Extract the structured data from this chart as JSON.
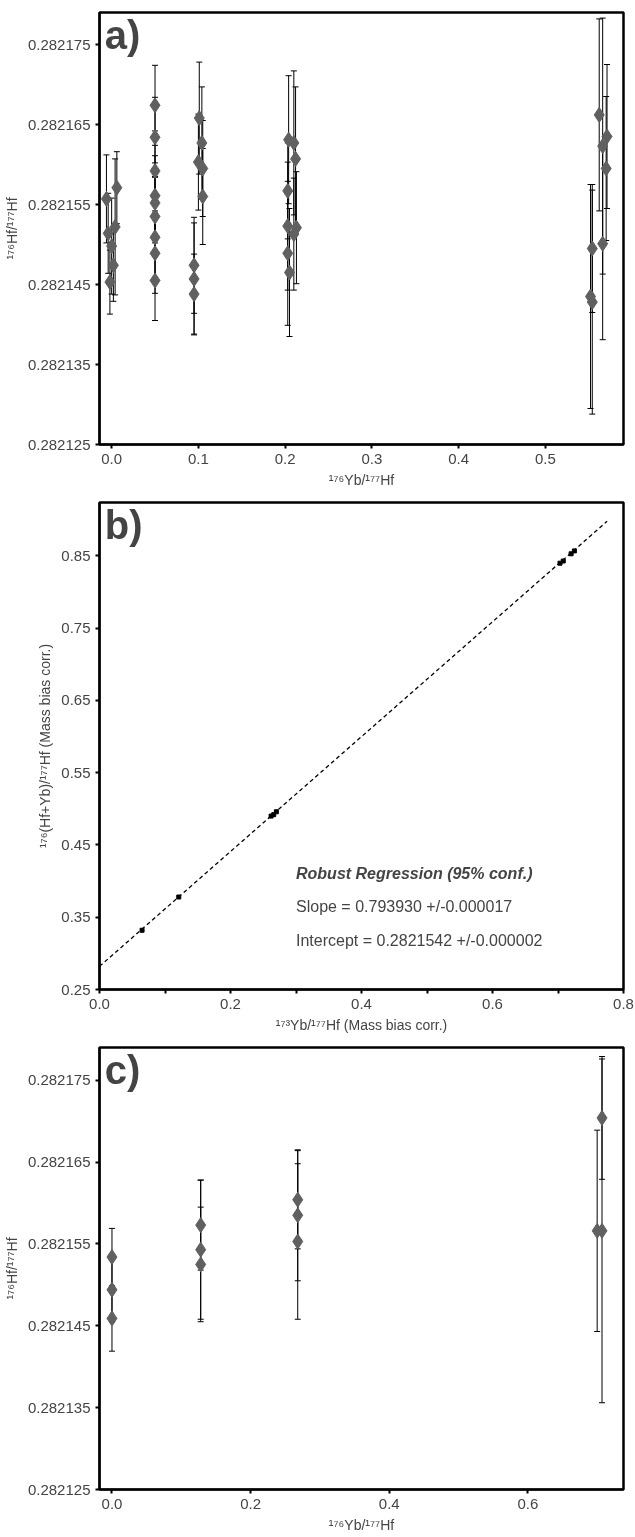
{
  "chart_data": [
    {
      "type": "scatter",
      "title": "a)",
      "xlabel": "¹⁷⁶Yb/¹⁷⁷Hf",
      "ylabel": "¹⁷⁶Hf/¹⁷⁷Hf",
      "xlim": [
        -0.014,
        0.59
      ],
      "ylim": [
        0.282125,
        0.282179
      ],
      "xticks": [
        {
          "value": 0,
          "label": "0.0"
        },
        0.1,
        0.2,
        0.3,
        0.4,
        0.5
      ],
      "yticks": [
        0.282125,
        0.282135,
        0.282145,
        0.282155,
        0.282165,
        0.282175
      ],
      "grid": false,
      "series": [
        {
          "marker": "diamond",
          "color": "#606060",
          "x": [
            0.006,
            -0.006,
            0.004,
            -0.004,
            0,
            0.002,
            -0.002,
            0.05,
            0.05,
            0.05,
            0.05,
            0.05,
            0.05,
            0.05,
            0.05,
            0.05,
            0.101,
            0.104,
            0.1,
            0.105,
            0.105,
            0.095,
            0.095,
            0.095,
            0.204,
            0.21,
            0.212,
            0.203,
            0.203,
            0.213,
            0.21,
            0.203,
            0.205,
            0.562,
            0.571,
            0.566,
            0.57,
            0.566,
            0.554,
            0.552,
            0.554
          ],
          "values": [
            0.2821571,
            0.2821557,
            0.2821522,
            0.2821514,
            0.2821498,
            0.2821474,
            0.2821453,
            0.2821674,
            0.2821634,
            0.2821592,
            0.2821561,
            0.2821552,
            0.2821535,
            0.2821509,
            0.2821489,
            0.2821455,
            0.2821658,
            0.2821627,
            0.2821603,
            0.2821595,
            0.282156,
            0.2821474,
            0.2821457,
            0.2821438,
            0.2821631,
            0.2821627,
            0.2821607,
            0.2821567,
            0.2821523,
            0.2821521,
            0.2821513,
            0.2821489,
            0.2821465,
            0.2821662,
            0.2821635,
            0.2821623,
            0.2821595,
            0.2821501,
            0.2821495,
            0.2821435,
            0.2821428
          ],
          "errors": [
            4.5e-06,
            5.5e-06,
            8.5e-06,
            5e-06,
            6e-06,
            4.5e-06,
            4e-06,
            5e-06,
            5e-06,
            5e-06,
            5e-06,
            5e-06,
            5e-06,
            5e-06,
            5e-06,
            5e-06,
            7e-06,
            7e-06,
            6e-06,
            6e-06,
            6e-06,
            6e-06,
            7e-06,
            5e-06,
            8e-06,
            9e-06,
            9e-06,
            6e-06,
            8e-06,
            7e-06,
            7e-06,
            9e-06,
            8e-06,
            1.2e-05,
            9e-06,
            1.6e-05,
            9e-06,
            1.2e-05,
            8e-06,
            1.4e-05,
            1.4e-05
          ]
        }
      ]
    },
    {
      "type": "scatter",
      "title": "b)",
      "xlabel": "¹⁷³Yb/¹⁷⁷Hf (Mass bias corr.)",
      "ylabel": "¹⁷⁶(Hf+Yb)/¹⁷⁷Hf (Mass bias corr.)",
      "xlim": [
        0,
        0.8
      ],
      "ylim": [
        0.25,
        0.924
      ],
      "xticks": [
        {
          "value": 0,
          "label": "0.0"
        },
        {
          "value": 0.1,
          "label": null
        },
        0.2,
        {
          "value": 0.3,
          "label": null
        },
        0.4,
        {
          "value": 0.5,
          "label": null
        },
        0.6,
        {
          "value": 0.7,
          "label": null
        },
        0.8
      ],
      "yticks": [
        0.25,
        0.35,
        0.45,
        0.55,
        0.65,
        0.75,
        0.85
      ],
      "grid": false,
      "annotations": [
        "Robust Regression (95% conf.)",
        "Slope = 0.793930 +/-0.000017",
        "Intercept = 0.2821542 +/-0.000002"
      ],
      "series": [
        {
          "type": "line",
          "line_style": "dashed",
          "color": "#000000",
          "x": [
            0,
            0.775
          ],
          "values": [
            0.282,
            0.898
          ]
        },
        {
          "marker": "square",
          "color": "#000000",
          "x": [
            0.065,
            0.121,
            0.262,
            0.266,
            0.27,
            0.703,
            0.708,
            0.72,
            0.725
          ],
          "values": [
            0.332,
            0.378,
            0.49,
            0.492,
            0.496,
            0.84,
            0.843,
            0.853,
            0.857
          ]
        }
      ]
    },
    {
      "type": "scatter",
      "title": "c)",
      "xlabel": "¹⁷⁶Yb/¹⁷⁷Hf",
      "ylabel": "¹⁷⁶Hf/¹⁷⁷Hf",
      "xlim": [
        -0.018,
        0.738
      ],
      "ylim": [
        0.282125,
        0.282179
      ],
      "xticks": [
        {
          "value": 0,
          "label": "0.0"
        },
        0.2,
        0.4,
        0.6
      ],
      "yticks": [
        0.282125,
        0.282135,
        0.282145,
        0.282155,
        0.282165,
        0.282175
      ],
      "grid": false,
      "series": [
        {
          "marker": "diamond",
          "color": "#606060",
          "x": [
            0,
            0,
            0,
            0.128,
            0.128,
            0.128,
            0.268,
            0.268,
            0.268,
            0.7,
            0.707,
            0.707
          ],
          "values": [
            0.2821534,
            0.2821494,
            0.2821459,
            0.2821573,
            0.2821543,
            0.2821525,
            0.2821604,
            0.2821585,
            0.2821553,
            0.2821566,
            0.2821566,
            0.2821704
          ],
          "errors": [
            3.5e-06,
            4e-06,
            4e-06,
            5.5e-06,
            8.5e-06,
            7e-06,
            6e-06,
            8e-06,
            9.5e-06,
            1.23e-05,
            2.1e-05,
            7.5e-06
          ]
        }
      ]
    }
  ]
}
